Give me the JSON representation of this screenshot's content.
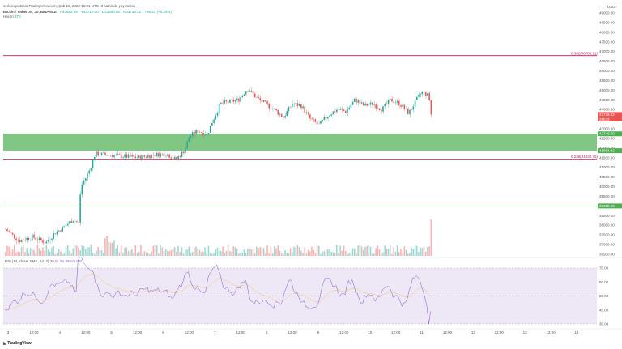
{
  "header": {
    "publish_line": "serkangoktekin TradingView.com, Şub 10, 2022 16:01 UTC+3 kathinde yayınlandı",
    "symbol": "Bitcoin / TetherUS, 30, BINANCE",
    "ohlc": {
      "open": "A43662.99",
      "high": "Y43710.00",
      "low": "D43500.00",
      "close": "K43739.42",
      "change": "+86.43 (+0.20%)"
    },
    "volume_label": "Hacim",
    "volume_value": "370"
  },
  "price_axis": {
    "unit": "USDT",
    "ticks": [
      "49000.00",
      "48500.00",
      "48000.00",
      "47500.00",
      "47000.00",
      "46500.00",
      "46000.00",
      "45500.00",
      "45000.00",
      "44500.00",
      "44000.00",
      "43500.00",
      "43000.00",
      "42500.00",
      "42000.00",
      "41500.00",
      "41000.00",
      "40500.00",
      "40000.00",
      "39500.00",
      "39000.00",
      "38500.00",
      "38000.00",
      "37500.00",
      "37000.00",
      "36500.00"
    ]
  },
  "fib_levels": [
    {
      "label": "0.382(46788.91)",
      "value": 46788.91,
      "color": "#c2185b"
    },
    {
      "label": "0.236(41432.75)",
      "value": 41432.75,
      "color": "#c2185b"
    }
  ],
  "zone": {
    "top": 42740.0,
    "bottom": 41864.42,
    "color": "#4caf50"
  },
  "support_line": {
    "value": 39000.06,
    "label": "39000.06",
    "color": "#4caf50"
  },
  "badges": [
    {
      "label": "43739.42",
      "sub": "28h33",
      "value": 43739.42,
      "color": "#ef5350"
    },
    {
      "label": "42740.00",
      "value": 42740.0,
      "color": "#4caf50"
    },
    {
      "label": "41864.42",
      "value": 41864.42,
      "color": "#4caf50"
    },
    {
      "label": "39000.06",
      "value": 39000.06,
      "color": "#4caf50"
    }
  ],
  "rsi": {
    "label": "RSI (14, close, SMA, 14, 2)",
    "values_text": "39.01  51.08  n/a  0.0",
    "ticks": [
      "70.00",
      "60.00",
      "50.00",
      "40.00",
      "30.00"
    ],
    "upper": 70,
    "lower": 30
  },
  "time_axis": [
    "3",
    "12:00",
    "4",
    "12:00",
    "5",
    "12:00",
    "6",
    "12:00",
    "7",
    "12:00",
    "8",
    "12:00",
    "9",
    "12:00",
    "10",
    "12:00",
    "11",
    "12:00",
    "12",
    "12:00",
    "13",
    "12:00",
    "14"
  ],
  "footer": {
    "brand": "TradingView"
  },
  "colors": {
    "up": "#26a69a",
    "down": "#ef5350",
    "rsi_line": "#7e57c2",
    "rsi_ma": "#f0c674",
    "rsi_band": "#ede7f6"
  }
}
